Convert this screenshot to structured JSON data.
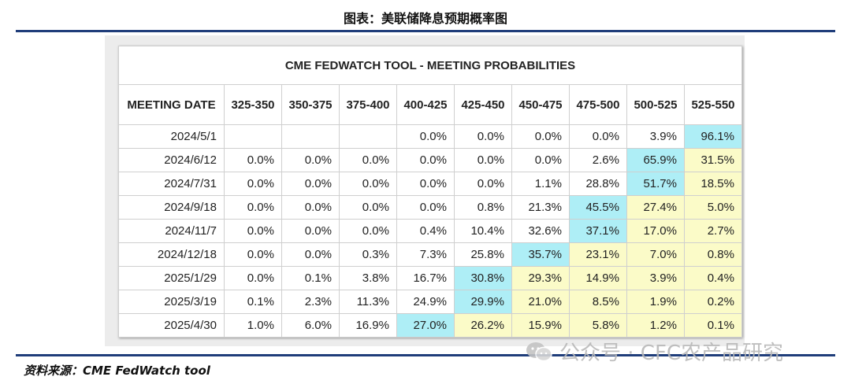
{
  "figure_title": "图表：美联储降息预期概率图",
  "table_title": "CME FEDWATCH TOOL - MEETING PROBABILITIES",
  "header_first": "MEETING DATE",
  "rate_ranges": [
    "325-350",
    "350-375",
    "375-400",
    "400-425",
    "425-450",
    "450-475",
    "475-500",
    "500-525",
    "525-550"
  ],
  "rows": [
    {
      "date": "2024/5/1",
      "cells": [
        "",
        "",
        "",
        "0.0%",
        "0.0%",
        "0.0%",
        "0.0%",
        "3.9%",
        "96.1%"
      ]
    },
    {
      "date": "2024/6/12",
      "cells": [
        "0.0%",
        "0.0%",
        "0.0%",
        "0.0%",
        "0.0%",
        "0.0%",
        "2.6%",
        "65.9%",
        "31.5%"
      ]
    },
    {
      "date": "2024/7/31",
      "cells": [
        "0.0%",
        "0.0%",
        "0.0%",
        "0.0%",
        "0.0%",
        "1.1%",
        "28.8%",
        "51.7%",
        "18.5%"
      ]
    },
    {
      "date": "2024/9/18",
      "cells": [
        "0.0%",
        "0.0%",
        "0.0%",
        "0.0%",
        "0.8%",
        "21.3%",
        "45.5%",
        "27.4%",
        "5.0%"
      ]
    },
    {
      "date": "2024/11/7",
      "cells": [
        "0.0%",
        "0.0%",
        "0.0%",
        "0.4%",
        "10.4%",
        "32.6%",
        "37.1%",
        "17.0%",
        "2.7%"
      ]
    },
    {
      "date": "2024/12/18",
      "cells": [
        "0.0%",
        "0.0%",
        "0.3%",
        "7.3%",
        "25.8%",
        "35.7%",
        "23.1%",
        "7.0%",
        "0.8%"
      ]
    },
    {
      "date": "2025/1/29",
      "cells": [
        "0.0%",
        "0.1%",
        "3.8%",
        "16.7%",
        "30.8%",
        "29.3%",
        "14.9%",
        "3.9%",
        "0.4%"
      ]
    },
    {
      "date": "2025/3/19",
      "cells": [
        "0.1%",
        "2.3%",
        "11.3%",
        "24.9%",
        "29.9%",
        "21.0%",
        "8.5%",
        "1.9%",
        "0.2%"
      ]
    },
    {
      "date": "2025/4/30",
      "cells": [
        "1.0%",
        "6.0%",
        "16.9%",
        "27.0%",
        "26.2%",
        "15.9%",
        "5.8%",
        "1.2%",
        "0.1%"
      ]
    }
  ],
  "highlight_colors": {
    "max": "#aeeef6",
    "after_max": "#fbfbc8"
  },
  "source": "资料来源：CME FedWatch tool",
  "watermark": "公众号 · CFC农产品研究",
  "watermark_icon": "wechat-icon"
}
